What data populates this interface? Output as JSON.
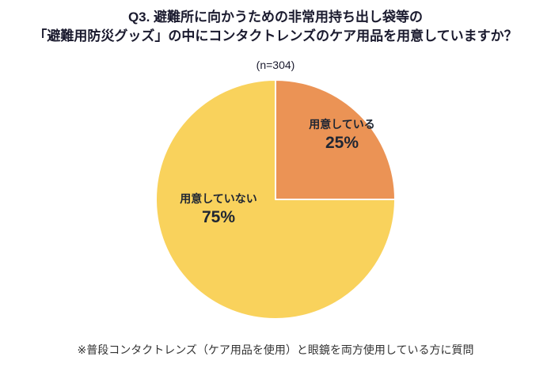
{
  "page": {
    "title_line1": "Q3. 避難所に向かうための非常用持ち出し袋等の",
    "title_line2": "「避難用防災グッズ」の中にコンタクトレンズのケア用品を用意していますか？",
    "sample_size_label": "(n=304)",
    "footnote": "※普段コンタクトレンズ（ケア用品を使用）と眼鏡を両方使用している方に質問"
  },
  "chart_data": {
    "type": "pie",
    "title": "避難用防災グッズの中にコンタクトレンズのケア用品を用意していますか",
    "sample_size": 304,
    "start_angle_deg": 0,
    "direction": "clockwise",
    "legend_position": "none",
    "labels_inside": true,
    "slices": [
      {
        "label": "用意している",
        "value": 25,
        "value_label": "25%",
        "color": "#EB9355"
      },
      {
        "label": "用意していない",
        "value": 75,
        "value_label": "75%",
        "color": "#F9D25C"
      }
    ]
  }
}
